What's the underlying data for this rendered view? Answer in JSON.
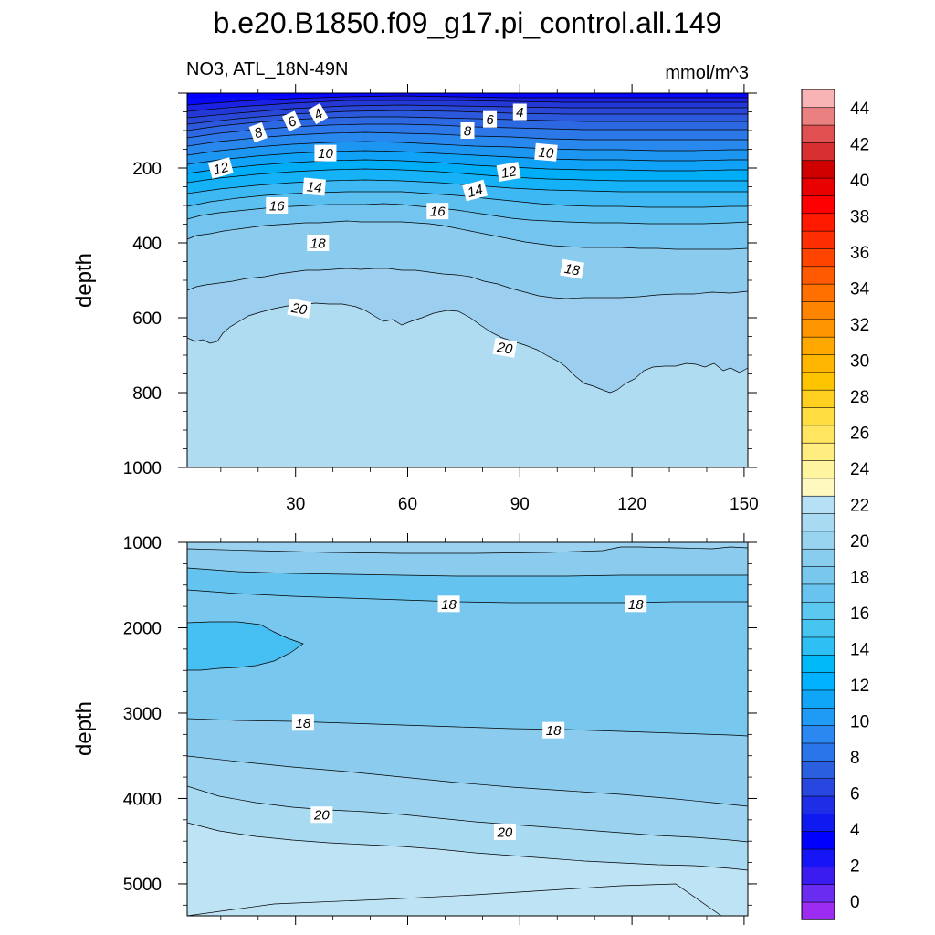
{
  "chart_data": {
    "type": "contour",
    "title": "b.e20.B1850.f09_g17.pi_control.all.149",
    "variable": "NO3, ATL_18N-49N",
    "units": "mmol/m^3",
    "panels": [
      {
        "ylabel": "depth",
        "ylim": [
          1000,
          0
        ],
        "yticks": [
          "200",
          "400",
          "600",
          "800",
          "1000"
        ],
        "xlim": [
          1,
          151
        ],
        "xticks": [
          "30",
          "60",
          "90",
          "120",
          "150"
        ],
        "x_tick_labels_shown": true,
        "contour_labels": [
          {
            "text": "4",
            "x": 36,
            "y": 55,
            "angle": -30
          },
          {
            "text": "4",
            "x": 90,
            "y": 50,
            "angle": 0
          },
          {
            "text": "6",
            "x": 29,
            "y": 75,
            "angle": -25
          },
          {
            "text": "6",
            "x": 82,
            "y": 70,
            "angle": 0
          },
          {
            "text": "8",
            "x": 20,
            "y": 105,
            "angle": -20
          },
          {
            "text": "8",
            "x": 76,
            "y": 100,
            "angle": 0
          },
          {
            "text": "10",
            "x": 38,
            "y": 160,
            "angle": 0
          },
          {
            "text": "10",
            "x": 97,
            "y": 158,
            "angle": 5
          },
          {
            "text": "12",
            "x": 10,
            "y": 200,
            "angle": -15
          },
          {
            "text": "12",
            "x": 87,
            "y": 210,
            "angle": -10
          },
          {
            "text": "14",
            "x": 35,
            "y": 250,
            "angle": 5
          },
          {
            "text": "14",
            "x": 78,
            "y": 260,
            "angle": -15
          },
          {
            "text": "16",
            "x": 25,
            "y": 300,
            "angle": 0
          },
          {
            "text": "16",
            "x": 68,
            "y": 315,
            "angle": 0
          },
          {
            "text": "18",
            "x": 36,
            "y": 400,
            "angle": 0
          },
          {
            "text": "18",
            "x": 104,
            "y": 470,
            "angle": 10
          },
          {
            "text": "20",
            "x": 31,
            "y": 575,
            "angle": 10
          },
          {
            "text": "20",
            "x": 86,
            "y": 680,
            "angle": 10
          }
        ]
      },
      {
        "ylabel": "depth",
        "ylim": [
          5375,
          1000
        ],
        "yticks": [
          "1000",
          "2000",
          "3000",
          "4000",
          "5000"
        ],
        "xlim": [
          1,
          151
        ],
        "x_tick_labels_shown": false,
        "contour_labels": [
          {
            "text": "18",
            "x": 71,
            "y": 1720,
            "angle": 0
          },
          {
            "text": "18",
            "x": 121,
            "y": 1720,
            "angle": 0
          },
          {
            "text": "18",
            "x": 32,
            "y": 3110,
            "angle": 0
          },
          {
            "text": "18",
            "x": 99,
            "y": 3200,
            "angle": 0
          },
          {
            "text": "20",
            "x": 37,
            "y": 4190,
            "angle": 0
          },
          {
            "text": "20",
            "x": 86,
            "y": 4390,
            "angle": 0
          }
        ]
      }
    ],
    "colorbar": {
      "labels": [
        "0",
        "2",
        "4",
        "6",
        "8",
        "10",
        "12",
        "14",
        "16",
        "18",
        "20",
        "22",
        "24",
        "26",
        "28",
        "30",
        "32",
        "34",
        "36",
        "38",
        "40",
        "42",
        "44"
      ],
      "levels": [
        -1,
        0,
        1,
        2,
        3,
        4,
        5,
        6,
        7,
        8,
        9,
        10,
        11,
        12,
        13,
        14,
        15,
        16,
        17,
        18,
        19,
        20,
        21,
        22,
        23,
        24,
        25,
        26,
        27,
        28,
        29,
        30,
        31,
        32,
        33,
        34,
        35,
        36,
        37,
        38,
        39,
        40,
        41,
        42,
        43,
        44,
        45
      ],
      "colors": [
        "#9c2cf2",
        "#6a2cf0",
        "#3b1cf0",
        "#1515f5",
        "#0000ff",
        "#0e1af0",
        "#1e2ee6",
        "#2846e0",
        "#2a5fe0",
        "#2a75ea",
        "#2a88f0",
        "#1f9af5",
        "#10a6f8",
        "#00b2ff",
        "#00baf8",
        "#2ec0f4",
        "#48c4f0",
        "#5cc8f0",
        "#68c4ee",
        "#78c8ee",
        "#88ccee",
        "#98d4f0",
        "#a8daf2",
        "#b6e0f4",
        "#fff9c0",
        "#fff4a0",
        "#ffed80",
        "#ffe560",
        "#ffdc40",
        "#ffd020",
        "#ffc400",
        "#ffb600",
        "#ffa800",
        "#ff9600",
        "#ff8400",
        "#ff7000",
        "#ff5a00",
        "#ff4400",
        "#ff2e00",
        "#ff1a00",
        "#ff0000",
        "#e80000",
        "#d00000",
        "#d83030",
        "#e05050",
        "#ea8080",
        "#f8b4b4"
      ]
    }
  }
}
